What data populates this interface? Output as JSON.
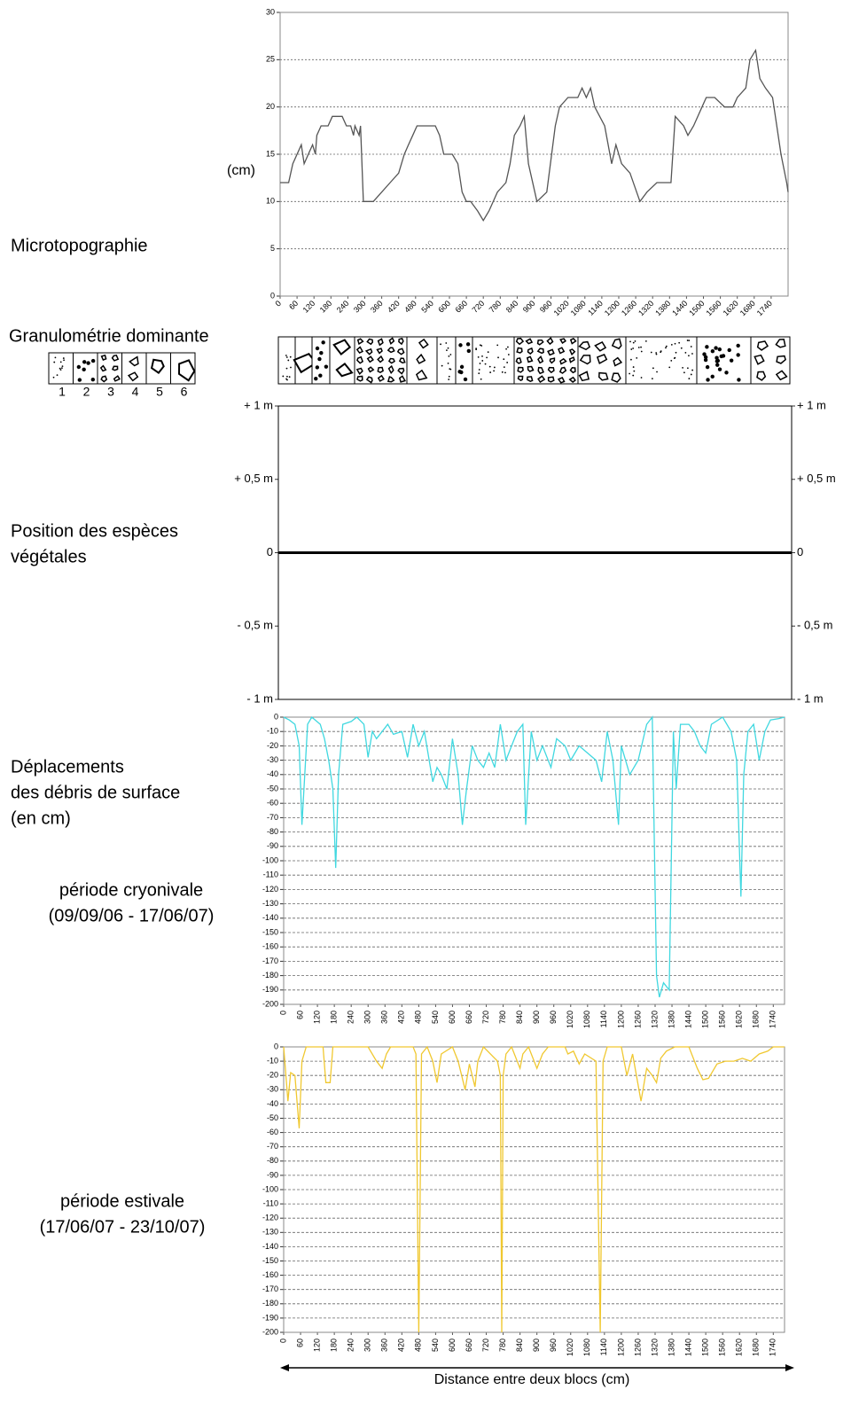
{
  "granulometry": {
    "title": "Granulométrie dominante",
    "legend": [
      "1",
      "2",
      "3",
      "4",
      "5",
      "6"
    ]
  },
  "chart_data": [
    {
      "type": "line",
      "side_label": [
        "Microtopographie"
      ],
      "y_label": "(cm)",
      "color": "#555555",
      "grid": true,
      "xlim": [
        0,
        1800
      ],
      "ylim": [
        0,
        30
      ],
      "yticks": [
        0,
        5,
        10,
        15,
        20,
        25,
        30
      ],
      "xticks": [
        0,
        60,
        120,
        180,
        240,
        300,
        360,
        420,
        480,
        540,
        600,
        660,
        720,
        780,
        840,
        900,
        960,
        1020,
        1080,
        1140,
        1200,
        1260,
        1320,
        1380,
        1440,
        1500,
        1560,
        1620,
        1680,
        1740
      ],
      "x": [
        0,
        30,
        45,
        60,
        75,
        85,
        100,
        115,
        125,
        130,
        145,
        170,
        185,
        220,
        235,
        250,
        260,
        265,
        280,
        285,
        295,
        330,
        360,
        390,
        420,
        440,
        455,
        470,
        485,
        550,
        565,
        580,
        610,
        630,
        645,
        660,
        675,
        700,
        720,
        740,
        770,
        800,
        815,
        830,
        850,
        865,
        880,
        910,
        945,
        975,
        990,
        1020,
        1055,
        1070,
        1085,
        1100,
        1115,
        1150,
        1175,
        1190,
        1210,
        1240,
        1275,
        1300,
        1335,
        1385,
        1400,
        1430,
        1445,
        1465,
        1495,
        1510,
        1540,
        1575,
        1605,
        1620,
        1650,
        1665,
        1685,
        1700,
        1720,
        1745,
        1775,
        1795,
        1800
      ],
      "values": [
        12,
        12,
        14,
        15,
        16,
        14,
        15,
        16,
        15,
        17,
        18,
        18,
        19,
        19,
        18,
        18,
        17,
        18,
        17,
        18,
        10,
        10,
        11,
        12,
        13,
        15,
        16,
        17,
        18,
        18,
        17,
        15,
        15,
        14,
        11,
        10,
        10,
        9,
        8,
        9,
        11,
        12,
        14,
        17,
        18,
        19,
        14,
        10,
        11,
        18,
        20,
        21,
        21,
        22,
        21,
        22,
        20,
        18,
        14,
        16,
        14,
        13,
        10,
        11,
        12,
        12,
        19,
        18,
        17,
        18,
        20,
        21,
        21,
        20,
        20,
        21,
        22,
        25,
        26,
        23,
        22,
        21,
        15,
        12,
        11
      ]
    },
    {
      "type": "line",
      "side_label": [
        "Position des espèces",
        "végétales"
      ],
      "zero_line": true,
      "ylim": [
        -1,
        1
      ],
      "yticks": [
        {
          "value": 1,
          "label": "+ 1 m"
        },
        {
          "value": 0.5,
          "label": "+ 0,5 m"
        },
        0,
        {
          "value": -0.5,
          "label": "- 0,5 m"
        },
        {
          "value": -1,
          "label": "- 1 m"
        }
      ],
      "y2lim": [
        -1,
        1
      ],
      "y2ticks": [
        {
          "value": 1,
          "label": "+ 1 m"
        },
        {
          "value": 0.5,
          "label": "+ 0,5 m"
        },
        0,
        {
          "value": -0.5,
          "label": "- 0,5 m"
        },
        {
          "value": -1,
          "label": "- 1 m"
        }
      ]
    },
    {
      "type": "line",
      "side_label": [
        "Déplacements",
        "des débris de surface",
        "(en cm)"
      ],
      "period_label": [
        "période cryonivale",
        "(09/09/06 - 17/06/07)"
      ],
      "color": "#40d8e0",
      "grid": true,
      "xlim": [
        0,
        1780
      ],
      "ylim": [
        -200,
        0
      ],
      "yticks": [
        0,
        -10,
        -20,
        -30,
        -40,
        -50,
        -60,
        -70,
        -80,
        -90,
        -100,
        -110,
        -120,
        -130,
        -140,
        -150,
        -160,
        -170,
        -180,
        -190,
        -200
      ],
      "xticks": [
        0,
        60,
        120,
        180,
        240,
        300,
        360,
        420,
        480,
        540,
        600,
        660,
        720,
        780,
        840,
        900,
        960,
        1020,
        1080,
        1140,
        1200,
        1260,
        1320,
        1380,
        1440,
        1500,
        1560,
        1620,
        1680,
        1740
      ],
      "x": [
        0,
        20,
        40,
        55,
        65,
        75,
        85,
        100,
        130,
        145,
        160,
        175,
        185,
        195,
        210,
        240,
        260,
        285,
        300,
        315,
        330,
        350,
        370,
        390,
        420,
        440,
        460,
        480,
        500,
        530,
        545,
        560,
        580,
        600,
        620,
        635,
        650,
        670,
        690,
        710,
        730,
        750,
        770,
        790,
        810,
        830,
        850,
        860,
        880,
        900,
        920,
        950,
        970,
        1000,
        1020,
        1050,
        1080,
        1110,
        1130,
        1150,
        1170,
        1190,
        1200,
        1230,
        1260,
        1290,
        1310,
        1325,
        1335,
        1350,
        1370,
        1385,
        1395,
        1410,
        1440,
        1460,
        1480,
        1500,
        1520,
        1560,
        1590,
        1610,
        1625,
        1635,
        1650,
        1670,
        1690,
        1710,
        1730,
        1760,
        1780
      ],
      "values": [
        0,
        -2,
        -5,
        -20,
        -75,
        -40,
        -5,
        0,
        -5,
        -15,
        -30,
        -50,
        -105,
        -40,
        -5,
        -3,
        0,
        -5,
        -28,
        -10,
        -15,
        -10,
        -5,
        -12,
        -10,
        -28,
        -5,
        -20,
        -10,
        -45,
        -35,
        -40,
        -50,
        -15,
        -40,
        -75,
        -50,
        -20,
        -30,
        -35,
        -25,
        -35,
        -5,
        -30,
        -20,
        -10,
        -5,
        -75,
        -10,
        -30,
        -20,
        -35,
        -15,
        -20,
        -30,
        -20,
        -25,
        -30,
        -45,
        -10,
        -30,
        -75,
        -20,
        -40,
        -30,
        -5,
        0,
        -180,
        -195,
        -185,
        -190,
        -10,
        -50,
        -5,
        -5,
        -10,
        -20,
        -25,
        -5,
        0,
        -10,
        -30,
        -125,
        -40,
        -10,
        -5,
        -30,
        -10,
        -2,
        -1,
        0
      ]
    },
    {
      "type": "line",
      "period_label": [
        "période estivale",
        "(17/06/07 - 23/10/07)"
      ],
      "color": "#f0c830",
      "grid": true,
      "x_label": "Distance entre deux blocs (cm)",
      "xlim": [
        0,
        1780
      ],
      "ylim": [
        -200,
        0
      ],
      "yticks": [
        0,
        -10,
        -20,
        -30,
        -40,
        -50,
        -60,
        -70,
        -80,
        -90,
        -100,
        -110,
        -120,
        -130,
        -140,
        -150,
        -160,
        -170,
        -180,
        -190,
        -200
      ],
      "xticks": [
        0,
        60,
        120,
        180,
        240,
        300,
        360,
        420,
        480,
        540,
        600,
        660,
        720,
        780,
        840,
        900,
        960,
        1020,
        1080,
        1140,
        1200,
        1260,
        1320,
        1380,
        1440,
        1500,
        1560,
        1620,
        1680,
        1740
      ],
      "x": [
        0,
        15,
        25,
        40,
        55,
        65,
        80,
        140,
        150,
        165,
        175,
        300,
        330,
        350,
        365,
        380,
        460,
        470,
        480,
        490,
        510,
        530,
        545,
        560,
        600,
        620,
        645,
        660,
        680,
        690,
        710,
        760,
        770,
        775,
        780,
        790,
        810,
        840,
        850,
        870,
        900,
        920,
        940,
        1000,
        1010,
        1030,
        1050,
        1070,
        1110,
        1125,
        1135,
        1150,
        1200,
        1220,
        1240,
        1270,
        1290,
        1310,
        1325,
        1340,
        1360,
        1390,
        1440,
        1470,
        1490,
        1510,
        1540,
        1570,
        1600,
        1630,
        1660,
        1690,
        1720,
        1740,
        1780
      ],
      "values": [
        0,
        -38,
        -18,
        -20,
        -57,
        -10,
        0,
        0,
        -25,
        -25,
        0,
        0,
        -10,
        -15,
        -5,
        0,
        0,
        -5,
        -200,
        -5,
        0,
        -10,
        -25,
        -5,
        0,
        -10,
        -30,
        -12,
        -28,
        -10,
        0,
        -10,
        -20,
        -200,
        -20,
        -5,
        0,
        -15,
        -5,
        0,
        -15,
        -5,
        0,
        0,
        -5,
        -3,
        -12,
        -5,
        -10,
        -200,
        -10,
        0,
        0,
        -20,
        -5,
        -38,
        -15,
        -20,
        -25,
        -8,
        -3,
        0,
        0,
        -15,
        -23,
        -22,
        -12,
        -10,
        -10,
        -8,
        -10,
        -5,
        -3,
        0,
        0
      ]
    }
  ]
}
